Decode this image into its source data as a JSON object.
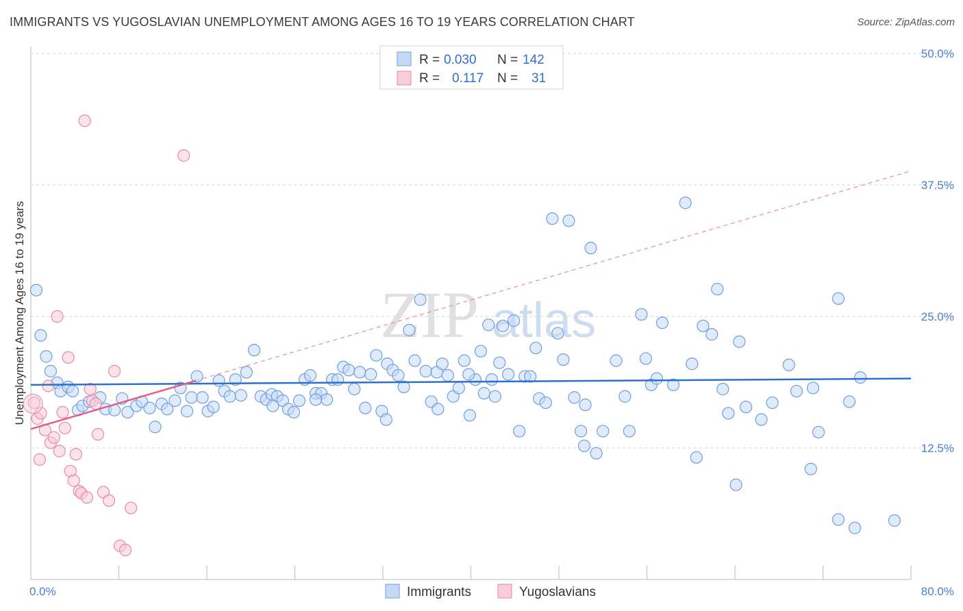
{
  "title": "IMMIGRANTS VS YUGOSLAVIAN UNEMPLOYMENT AMONG AGES 16 TO 19 YEARS CORRELATION CHART",
  "source": "Source: ZipAtlas.com",
  "watermark": {
    "zip": "ZIP",
    "atlas": "atlas"
  },
  "colors": {
    "blue_fill": "#c5d9f5",
    "blue_stroke": "#6f9fdc",
    "blue_line": "#2f6fcc",
    "pink_fill": "#f8ccd9",
    "pink_stroke": "#e88aa6",
    "pink_line": "#e0608a",
    "grid": "#d5d5d5",
    "tick_text": "#4a7fd0"
  },
  "legend": {
    "rows": [
      {
        "r_label": "R =",
        "r_value": "0.030",
        "n_label": "N =",
        "n_value": "142"
      },
      {
        "r_label": "R =",
        "r_value": "0.117",
        "n_label": "N =",
        "n_value": "31"
      }
    ]
  },
  "bottom_legend": [
    "Immigrants",
    "Yugoslavians"
  ],
  "chart_data": {
    "type": "scatter",
    "title": "IMMIGRANTS VS YUGOSLAVIAN UNEMPLOYMENT AMONG AGES 16 TO 19 YEARS CORRELATION CHART",
    "xlabel": "",
    "ylabel": "Unemployment Among Ages 16 to 19 years",
    "xlim": [
      0,
      80
    ],
    "ylim": [
      0,
      50
    ],
    "x_tick_labels": [
      "0.0%",
      "80.0%"
    ],
    "y_tick_values": [
      12.5,
      25.0,
      37.5,
      50.0
    ],
    "y_tick_labels": [
      "12.5%",
      "25.0%",
      "37.5%",
      "50.0%"
    ],
    "grid": true,
    "legend_position": "top-center",
    "series": [
      {
        "name": "Immigrants",
        "color": "#6f9fdc",
        "trend": {
          "x": [
            0,
            80
          ],
          "y": [
            18.5,
            19.1
          ]
        },
        "points": [
          [
            0.5,
            27.5
          ],
          [
            0.9,
            23.2
          ],
          [
            1.4,
            21.2
          ],
          [
            1.8,
            19.8
          ],
          [
            2.4,
            18.7
          ],
          [
            2.7,
            17.9
          ],
          [
            3.4,
            18.3
          ],
          [
            3.8,
            17.9
          ],
          [
            4.3,
            16.1
          ],
          [
            4.7,
            16.5
          ],
          [
            5.3,
            16.9
          ],
          [
            6.3,
            17.3
          ],
          [
            6.8,
            16.2
          ],
          [
            7.6,
            16.1
          ],
          [
            8.3,
            17.2
          ],
          [
            8.8,
            15.9
          ],
          [
            9.6,
            16.5
          ],
          [
            10.1,
            16.9
          ],
          [
            10.8,
            16.3
          ],
          [
            11.3,
            14.5
          ],
          [
            11.9,
            16.7
          ],
          [
            12.4,
            16.2
          ],
          [
            13.1,
            17.0
          ],
          [
            13.6,
            18.2
          ],
          [
            14.2,
            16.0
          ],
          [
            14.6,
            17.3
          ],
          [
            15.1,
            19.3
          ],
          [
            15.6,
            17.3
          ],
          [
            16.1,
            16.0
          ],
          [
            16.6,
            16.4
          ],
          [
            17.1,
            18.9
          ],
          [
            17.6,
            17.9
          ],
          [
            18.1,
            17.4
          ],
          [
            18.6,
            19.0
          ],
          [
            19.1,
            17.5
          ],
          [
            19.6,
            19.7
          ],
          [
            20.3,
            21.8
          ],
          [
            20.9,
            17.4
          ],
          [
            21.4,
            17.1
          ],
          [
            21.9,
            17.6
          ],
          [
            22.4,
            17.4
          ],
          [
            22.9,
            17.0
          ],
          [
            23.4,
            16.2
          ],
          [
            23.9,
            15.9
          ],
          [
            24.4,
            17.0
          ],
          [
            24.9,
            19.0
          ],
          [
            25.4,
            19.4
          ],
          [
            25.9,
            17.7
          ],
          [
            26.4,
            17.7
          ],
          [
            26.9,
            17.1
          ],
          [
            27.4,
            19.0
          ],
          [
            27.9,
            19.0
          ],
          [
            28.4,
            20.2
          ],
          [
            28.9,
            19.9
          ],
          [
            29.4,
            18.1
          ],
          [
            29.9,
            19.7
          ],
          [
            30.4,
            16.3
          ],
          [
            30.9,
            19.5
          ],
          [
            31.4,
            21.3
          ],
          [
            31.9,
            16.0
          ],
          [
            32.4,
            20.5
          ],
          [
            32.9,
            19.9
          ],
          [
            33.4,
            19.4
          ],
          [
            33.9,
            18.3
          ],
          [
            34.4,
            23.7
          ],
          [
            34.9,
            20.8
          ],
          [
            35.4,
            26.6
          ],
          [
            35.9,
            19.8
          ],
          [
            36.4,
            16.9
          ],
          [
            36.9,
            19.7
          ],
          [
            37.4,
            20.5
          ],
          [
            37.9,
            19.4
          ],
          [
            38.4,
            17.4
          ],
          [
            38.9,
            18.2
          ],
          [
            39.4,
            20.8
          ],
          [
            39.9,
            15.6
          ],
          [
            40.4,
            19.0
          ],
          [
            40.9,
            21.7
          ],
          [
            41.2,
            17.7
          ],
          [
            41.6,
            24.2
          ],
          [
            41.9,
            19.0
          ],
          [
            42.2,
            17.4
          ],
          [
            42.6,
            20.6
          ],
          [
            42.9,
            24.1
          ],
          [
            43.4,
            19.5
          ],
          [
            43.9,
            24.6
          ],
          [
            44.4,
            14.1
          ],
          [
            44.9,
            19.3
          ],
          [
            45.4,
            19.3
          ],
          [
            45.9,
            22.0
          ],
          [
            46.2,
            17.2
          ],
          [
            46.8,
            16.8
          ],
          [
            47.4,
            34.3
          ],
          [
            47.9,
            23.4
          ],
          [
            48.4,
            20.9
          ],
          [
            48.9,
            34.1
          ],
          [
            49.4,
            17.3
          ],
          [
            50.0,
            14.1
          ],
          [
            50.3,
            12.7
          ],
          [
            50.4,
            16.6
          ],
          [
            50.9,
            31.5
          ],
          [
            51.4,
            12.0
          ],
          [
            52.0,
            14.1
          ],
          [
            53.2,
            20.8
          ],
          [
            54.0,
            17.4
          ],
          [
            54.4,
            14.1
          ],
          [
            55.5,
            25.2
          ],
          [
            55.9,
            21.0
          ],
          [
            56.4,
            18.5
          ],
          [
            56.9,
            19.1
          ],
          [
            57.4,
            24.4
          ],
          [
            58.4,
            18.5
          ],
          [
            60.1,
            20.5
          ],
          [
            60.5,
            11.6
          ],
          [
            61.1,
            24.1
          ],
          [
            61.9,
            23.3
          ],
          [
            62.4,
            27.6
          ],
          [
            62.9,
            18.1
          ],
          [
            63.4,
            15.8
          ],
          [
            64.1,
            9.0
          ],
          [
            64.4,
            22.6
          ],
          [
            65.0,
            16.4
          ],
          [
            66.4,
            15.2
          ],
          [
            67.4,
            16.8
          ],
          [
            68.9,
            20.4
          ],
          [
            69.6,
            17.9
          ],
          [
            70.9,
            10.5
          ],
          [
            71.1,
            18.2
          ],
          [
            71.6,
            14.0
          ],
          [
            73.4,
            26.7
          ],
          [
            73.4,
            5.7
          ],
          [
            74.4,
            16.9
          ],
          [
            74.9,
            4.9
          ],
          [
            75.4,
            19.2
          ],
          [
            78.5,
            5.6
          ],
          [
            59.5,
            35.8
          ],
          [
            39.8,
            19.5
          ],
          [
            22.0,
            16.5
          ],
          [
            25.9,
            17.1
          ],
          [
            32.3,
            15.2
          ],
          [
            37.0,
            16.2
          ]
        ]
      },
      {
        "name": "Yugoslavians",
        "color": "#e88aa6",
        "trend": {
          "x": [
            0,
            15
          ],
          "y": [
            14.3,
            18.9
          ]
        },
        "points": [
          [
            0.3,
            16.8
          ],
          [
            0.6,
            15.3
          ],
          [
            0.9,
            15.8
          ],
          [
            1.3,
            14.2
          ],
          [
            1.6,
            18.4
          ],
          [
            1.8,
            13.0
          ],
          [
            2.1,
            13.5
          ],
          [
            2.4,
            25.0
          ],
          [
            2.6,
            12.2
          ],
          [
            2.9,
            15.9
          ],
          [
            3.1,
            14.4
          ],
          [
            3.4,
            21.1
          ],
          [
            3.6,
            10.3
          ],
          [
            3.9,
            9.4
          ],
          [
            4.1,
            11.9
          ],
          [
            4.4,
            8.4
          ],
          [
            4.6,
            8.2
          ],
          [
            4.9,
            43.6
          ],
          [
            5.1,
            7.8
          ],
          [
            5.4,
            18.1
          ],
          [
            5.6,
            17.0
          ],
          [
            5.9,
            16.7
          ],
          [
            6.1,
            13.8
          ],
          [
            6.6,
            8.3
          ],
          [
            7.1,
            7.5
          ],
          [
            7.6,
            19.8
          ],
          [
            8.1,
            3.2
          ],
          [
            8.6,
            2.8
          ],
          [
            9.1,
            6.8
          ],
          [
            13.9,
            40.3
          ],
          [
            0.8,
            11.4
          ]
        ]
      }
    ]
  }
}
